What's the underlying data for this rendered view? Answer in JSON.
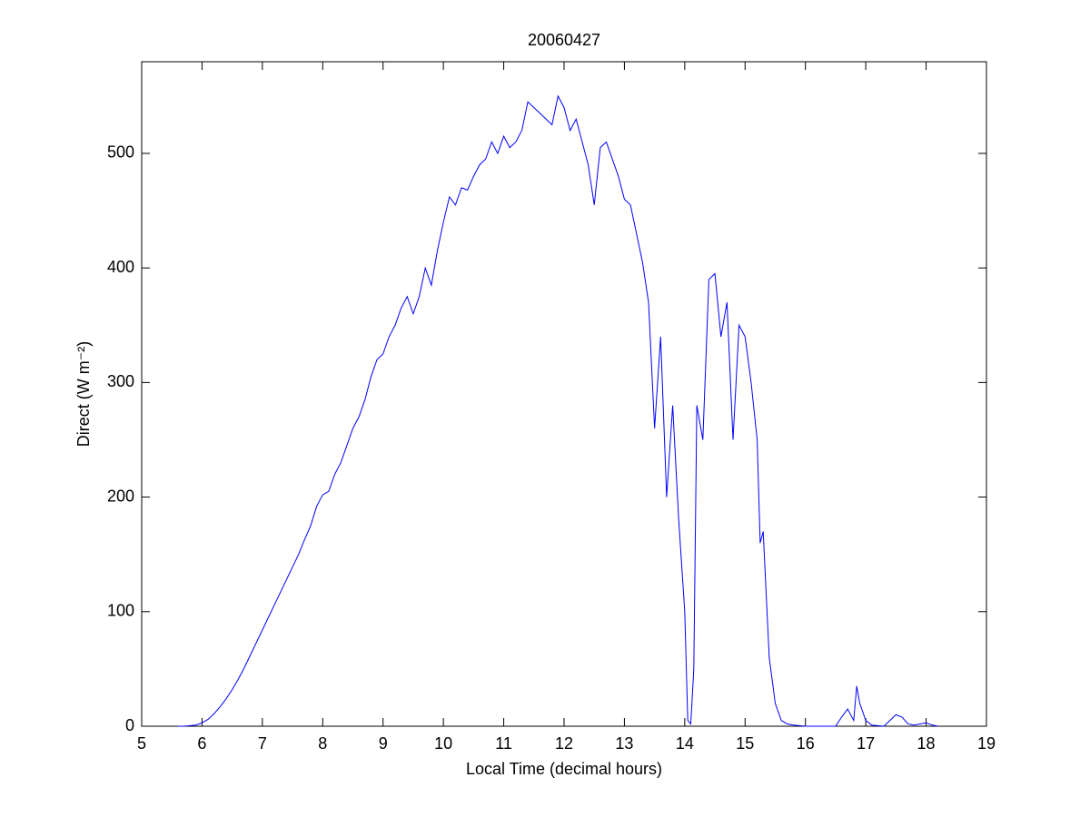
{
  "chart_data": {
    "type": "line",
    "title": "20060427",
    "xlabel": "Local Time (decimal hours)",
    "ylabel": "Direct (W m⁻²)",
    "xlim": [
      5,
      19
    ],
    "xticks": [
      5,
      6,
      7,
      8,
      9,
      10,
      11,
      12,
      13,
      14,
      15,
      16,
      17,
      18,
      19
    ],
    "ylim": [
      0,
      580
    ],
    "yticks": [
      0,
      100,
      200,
      300,
      400,
      500
    ],
    "series": [
      {
        "color": "#0000ff",
        "x": [
          5.6,
          5.7,
          5.8,
          5.9,
          6.0,
          6.1,
          6.2,
          6.3,
          6.4,
          6.5,
          6.6,
          6.7,
          6.8,
          6.9,
          7.0,
          7.1,
          7.2,
          7.3,
          7.4,
          7.5,
          7.6,
          7.7,
          7.8,
          7.9,
          8.0,
          8.1,
          8.2,
          8.3,
          8.4,
          8.5,
          8.6,
          8.7,
          8.8,
          8.9,
          9.0,
          9.1,
          9.2,
          9.3,
          9.4,
          9.5,
          9.6,
          9.7,
          9.8,
          9.9,
          10.0,
          10.1,
          10.2,
          10.3,
          10.4,
          10.5,
          10.6,
          10.7,
          10.8,
          10.9,
          11.0,
          11.1,
          11.2,
          11.3,
          11.4,
          11.5,
          11.6,
          11.7,
          11.8,
          11.9,
          12.0,
          12.1,
          12.2,
          12.3,
          12.4,
          12.5,
          12.6,
          12.7,
          12.8,
          12.9,
          13.0,
          13.1,
          13.2,
          13.3,
          13.4,
          13.5,
          13.6,
          13.7,
          13.8,
          13.9,
          14.0,
          14.05,
          14.1,
          14.15,
          14.2,
          14.3,
          14.4,
          14.5,
          14.6,
          14.7,
          14.8,
          14.9,
          15.0,
          15.1,
          15.2,
          15.25,
          15.3,
          15.4,
          15.5,
          15.6,
          15.7,
          15.8,
          16.0,
          16.3,
          16.5,
          16.6,
          16.7,
          16.8,
          16.85,
          16.9,
          17.0,
          17.1,
          17.3,
          17.5,
          17.6,
          17.7,
          17.8,
          18.0,
          18.1,
          18.2
        ],
        "values": [
          0,
          0,
          0.5,
          1,
          3,
          6,
          11,
          17,
          24,
          32,
          41,
          51,
          62,
          73,
          84,
          95,
          106,
          117,
          128,
          139,
          150,
          163,
          175,
          192,
          202,
          205,
          220,
          230,
          245,
          260,
          270,
          285,
          305,
          320,
          325,
          340,
          350,
          365,
          375,
          360,
          375,
          400,
          385,
          415,
          440,
          462,
          455,
          470,
          468,
          480,
          490,
          495,
          510,
          500,
          515,
          505,
          510,
          520,
          545,
          540,
          535,
          530,
          525,
          550,
          540,
          520,
          530,
          510,
          490,
          455,
          505,
          510,
          495,
          480,
          460,
          455,
          430,
          405,
          370,
          260,
          340,
          200,
          280,
          180,
          100,
          5,
          2,
          50,
          280,
          250,
          390,
          395,
          340,
          370,
          250,
          350,
          340,
          300,
          250,
          160,
          170,
          60,
          20,
          5,
          2,
          1,
          0,
          0,
          0,
          8,
          15,
          5,
          35,
          20,
          5,
          1,
          0,
          10,
          8,
          2,
          1,
          3,
          1,
          0
        ]
      }
    ]
  }
}
